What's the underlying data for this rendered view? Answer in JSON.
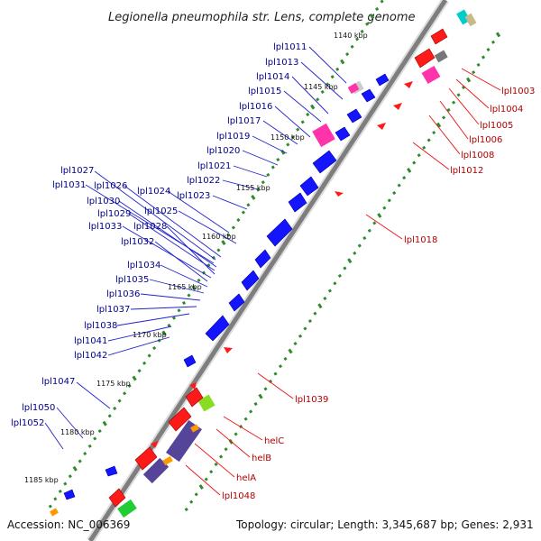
{
  "title": "Legionella pneumophila str. Lens, complete genome",
  "footer": {
    "accession": "Accession: NC_006369",
    "topology": "Topology: circular; Length: 3,345,687 bp; Genes: 2,931"
  },
  "colors": {
    "backbone": "#8c8c8c",
    "tick": "#2e8b2e",
    "forward_gene": "#0000ff",
    "reverse_gene": "#ff0000",
    "blue_label": "#00008b",
    "red_label": "#b30000"
  },
  "ticks": [
    "1140 kbp",
    "1145 kbp",
    "1150 kbp",
    "1155 kbp",
    "1160 kbp",
    "1165 kbp",
    "1170 kbp",
    "1175 kbp",
    "1180 kbp",
    "1185 kbp"
  ],
  "forward_labels": [
    "lpl1011",
    "lpl1013",
    "lpl1014",
    "lpl1015",
    "lpl1016",
    "lpl1017",
    "lpl1019",
    "lpl1020",
    "lpl1021",
    "lpl1022",
    "lpl1023",
    "lpl1024",
    "lpl1025",
    "lpl1026",
    "lpl1027",
    "lpl1031",
    "lpl1030",
    "lpl1029",
    "lpl1028",
    "lpl1033",
    "lpl1032",
    "lpl1034",
    "lpl1035",
    "lpl1036",
    "lpl1037",
    "lpl1038",
    "lpl1041",
    "lpl1042",
    "lpl1047",
    "lpl1050",
    "lpl1052"
  ],
  "reverse_labels": [
    "lpl1003",
    "lpl1004",
    "lpl1005",
    "lpl1006",
    "lpl1008",
    "lpl1012",
    "lpl1018",
    "lpl1039",
    "helC",
    "helB",
    "helA",
    "lpl1048"
  ]
}
